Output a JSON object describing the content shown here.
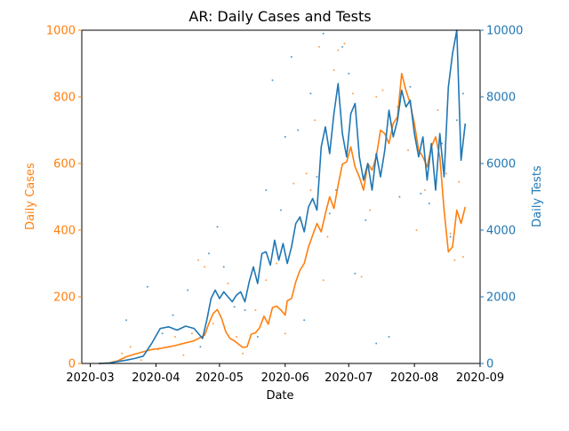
{
  "chart_data": {
    "type": "line",
    "title": "AR: Daily Cases and Tests",
    "xlabel": "Date",
    "ylabel_left": "Daily Cases",
    "ylabel_right": "Daily Tests",
    "x_ticks": [
      "2020-03",
      "2020-04",
      "2020-05",
      "2020-06",
      "2020-07",
      "2020-08",
      "2020-09"
    ],
    "xlim": [
      "2020-02-26",
      "2020-09-01"
    ],
    "ylim_left": [
      0,
      1000
    ],
    "ylim_right": [
      0,
      10000
    ],
    "yticks_left": [
      0,
      200,
      400,
      600,
      800,
      1000
    ],
    "yticks_right": [
      0,
      2000,
      4000,
      6000,
      8000,
      10000
    ],
    "grid": false,
    "colors": {
      "cases": "#ff7f0e",
      "tests": "#1f77b4",
      "axis": "#000000"
    },
    "series": [
      {
        "axis": "left",
        "color": "#ff7f0e",
        "points": [
          [
            "2020-03-05",
            0
          ],
          [
            "2020-03-10",
            2
          ],
          [
            "2020-03-14",
            8
          ],
          [
            "2020-03-18",
            20
          ],
          [
            "2020-03-22",
            28
          ],
          [
            "2020-03-26",
            35
          ],
          [
            "2020-03-30",
            42
          ],
          [
            "2020-04-03",
            45
          ],
          [
            "2020-04-07",
            50
          ],
          [
            "2020-04-11",
            55
          ],
          [
            "2020-04-15",
            62
          ],
          [
            "2020-04-19",
            68
          ],
          [
            "2020-04-22",
            78
          ],
          [
            "2020-04-24",
            85
          ],
          [
            "2020-04-26",
            120
          ],
          [
            "2020-04-28",
            150
          ],
          [
            "2020-04-30",
            162
          ],
          [
            "2020-05-02",
            135
          ],
          [
            "2020-05-04",
            95
          ],
          [
            "2020-05-06",
            75
          ],
          [
            "2020-05-08",
            68
          ],
          [
            "2020-05-10",
            58
          ],
          [
            "2020-05-12",
            48
          ],
          [
            "2020-05-14",
            50
          ],
          [
            "2020-05-16",
            88
          ],
          [
            "2020-05-18",
            92
          ],
          [
            "2020-05-20",
            108
          ],
          [
            "2020-05-22",
            142
          ],
          [
            "2020-05-24",
            118
          ],
          [
            "2020-05-26",
            168
          ],
          [
            "2020-05-28",
            172
          ],
          [
            "2020-05-30",
            160
          ],
          [
            "2020-06-01",
            145
          ],
          [
            "2020-06-02",
            188
          ],
          [
            "2020-06-04",
            195
          ],
          [
            "2020-06-06",
            245
          ],
          [
            "2020-06-08",
            280
          ],
          [
            "2020-06-10",
            300
          ],
          [
            "2020-06-12",
            350
          ],
          [
            "2020-06-14",
            385
          ],
          [
            "2020-06-16",
            420
          ],
          [
            "2020-06-18",
            395
          ],
          [
            "2020-06-20",
            450
          ],
          [
            "2020-06-22",
            500
          ],
          [
            "2020-06-24",
            465
          ],
          [
            "2020-06-26",
            535
          ],
          [
            "2020-06-28",
            598
          ],
          [
            "2020-06-30",
            605
          ],
          [
            "2020-07-02",
            650
          ],
          [
            "2020-07-04",
            590
          ],
          [
            "2020-07-06",
            560
          ],
          [
            "2020-07-08",
            520
          ],
          [
            "2020-07-10",
            600
          ],
          [
            "2020-07-12",
            580
          ],
          [
            "2020-07-14",
            620
          ],
          [
            "2020-07-16",
            700
          ],
          [
            "2020-07-18",
            690
          ],
          [
            "2020-07-20",
            660
          ],
          [
            "2020-07-22",
            720
          ],
          [
            "2020-07-24",
            740
          ],
          [
            "2020-07-26",
            870
          ],
          [
            "2020-07-28",
            820
          ],
          [
            "2020-07-30",
            780
          ],
          [
            "2020-08-01",
            720
          ],
          [
            "2020-08-03",
            640
          ],
          [
            "2020-08-05",
            620
          ],
          [
            "2020-08-07",
            590
          ],
          [
            "2020-08-09",
            650
          ],
          [
            "2020-08-11",
            680
          ],
          [
            "2020-08-13",
            620
          ],
          [
            "2020-08-15",
            460
          ],
          [
            "2020-08-17",
            335
          ],
          [
            "2020-08-19",
            350
          ],
          [
            "2020-08-21",
            460
          ],
          [
            "2020-08-23",
            420
          ],
          [
            "2020-08-25",
            470
          ]
        ]
      },
      {
        "axis": "right",
        "color": "#1f77b4",
        "points": [
          [
            "2020-03-05",
            0
          ],
          [
            "2020-03-10",
            10
          ],
          [
            "2020-03-14",
            60
          ],
          [
            "2020-03-18",
            100
          ],
          [
            "2020-03-22",
            150
          ],
          [
            "2020-03-26",
            220
          ],
          [
            "2020-03-30",
            600
          ],
          [
            "2020-04-03",
            1050
          ],
          [
            "2020-04-07",
            1100
          ],
          [
            "2020-04-11",
            1000
          ],
          [
            "2020-04-15",
            1120
          ],
          [
            "2020-04-19",
            1050
          ],
          [
            "2020-04-23",
            750
          ],
          [
            "2020-04-25",
            1300
          ],
          [
            "2020-04-27",
            1950
          ],
          [
            "2020-04-29",
            2200
          ],
          [
            "2020-05-01",
            1950
          ],
          [
            "2020-05-03",
            2150
          ],
          [
            "2020-05-05",
            2000
          ],
          [
            "2020-05-07",
            1850
          ],
          [
            "2020-05-09",
            2050
          ],
          [
            "2020-05-11",
            2150
          ],
          [
            "2020-05-13",
            1850
          ],
          [
            "2020-05-15",
            2450
          ],
          [
            "2020-05-17",
            2900
          ],
          [
            "2020-05-19",
            2400
          ],
          [
            "2020-05-21",
            3300
          ],
          [
            "2020-05-23",
            3350
          ],
          [
            "2020-05-25",
            2950
          ],
          [
            "2020-05-27",
            3700
          ],
          [
            "2020-05-29",
            3100
          ],
          [
            "2020-05-31",
            3600
          ],
          [
            "2020-06-02",
            3000
          ],
          [
            "2020-06-04",
            3500
          ],
          [
            "2020-06-06",
            4200
          ],
          [
            "2020-06-08",
            4400
          ],
          [
            "2020-06-10",
            3950
          ],
          [
            "2020-06-12",
            4700
          ],
          [
            "2020-06-14",
            4950
          ],
          [
            "2020-06-16",
            4600
          ],
          [
            "2020-06-18",
            6500
          ],
          [
            "2020-06-20",
            7100
          ],
          [
            "2020-06-22",
            6300
          ],
          [
            "2020-06-24",
            7500
          ],
          [
            "2020-06-26",
            8400
          ],
          [
            "2020-06-28",
            6900
          ],
          [
            "2020-06-30",
            6200
          ],
          [
            "2020-07-02",
            7500
          ],
          [
            "2020-07-04",
            7800
          ],
          [
            "2020-07-06",
            6200
          ],
          [
            "2020-07-08",
            5500
          ],
          [
            "2020-07-10",
            6000
          ],
          [
            "2020-07-12",
            5200
          ],
          [
            "2020-07-14",
            6300
          ],
          [
            "2020-07-16",
            5600
          ],
          [
            "2020-07-18",
            6400
          ],
          [
            "2020-07-20",
            7600
          ],
          [
            "2020-07-22",
            6800
          ],
          [
            "2020-07-24",
            7300
          ],
          [
            "2020-07-26",
            8200
          ],
          [
            "2020-07-28",
            7700
          ],
          [
            "2020-07-30",
            7900
          ],
          [
            "2020-08-01",
            6900
          ],
          [
            "2020-08-03",
            6200
          ],
          [
            "2020-08-05",
            6800
          ],
          [
            "2020-08-07",
            5500
          ],
          [
            "2020-08-09",
            6600
          ],
          [
            "2020-08-11",
            5200
          ],
          [
            "2020-08-13",
            6900
          ],
          [
            "2020-08-15",
            5600
          ],
          [
            "2020-08-17",
            8300
          ],
          [
            "2020-08-19",
            9300
          ],
          [
            "2020-08-21",
            10000
          ],
          [
            "2020-08-23",
            6100
          ],
          [
            "2020-08-25",
            7200
          ]
        ]
      }
    ],
    "scatter_left": [
      [
        "2020-03-16",
        30
      ],
      [
        "2020-03-20",
        50
      ],
      [
        "2020-03-25",
        10
      ],
      [
        "2020-04-02",
        42
      ],
      [
        "2020-04-10",
        80
      ],
      [
        "2020-04-14",
        25
      ],
      [
        "2020-04-18",
        90
      ],
      [
        "2020-04-21",
        310
      ],
      [
        "2020-04-24",
        290
      ],
      [
        "2020-04-28",
        120
      ],
      [
        "2020-05-05",
        240
      ],
      [
        "2020-05-09",
        80
      ],
      [
        "2020-05-12",
        30
      ],
      [
        "2020-05-18",
        160
      ],
      [
        "2020-05-23",
        250
      ],
      [
        "2020-05-28",
        300
      ],
      [
        "2020-06-01",
        90
      ],
      [
        "2020-06-05",
        540
      ],
      [
        "2020-06-08",
        430
      ],
      [
        "2020-06-11",
        570
      ],
      [
        "2020-06-13",
        520
      ],
      [
        "2020-06-15",
        730
      ],
      [
        "2020-06-17",
        950
      ],
      [
        "2020-06-19",
        250
      ],
      [
        "2020-06-21",
        380
      ],
      [
        "2020-06-24",
        880
      ],
      [
        "2020-06-26",
        940
      ],
      [
        "2020-06-29",
        960
      ],
      [
        "2020-07-03",
        810
      ],
      [
        "2020-07-07",
        260
      ],
      [
        "2020-07-11",
        460
      ],
      [
        "2020-07-14",
        800
      ],
      [
        "2020-07-17",
        820
      ],
      [
        "2020-07-21",
        720
      ],
      [
        "2020-07-24",
        770
      ],
      [
        "2020-07-29",
        640
      ],
      [
        "2020-08-02",
        400
      ],
      [
        "2020-08-06",
        520
      ],
      [
        "2020-08-12",
        760
      ],
      [
        "2020-08-16",
        570
      ],
      [
        "2020-08-18",
        390
      ],
      [
        "2020-08-20",
        310
      ],
      [
        "2020-08-22",
        545
      ],
      [
        "2020-08-24",
        320
      ]
    ],
    "scatter_right": [
      [
        "2020-03-18",
        1300
      ],
      [
        "2020-03-28",
        2300
      ],
      [
        "2020-04-04",
        900
      ],
      [
        "2020-04-09",
        1450
      ],
      [
        "2020-04-16",
        2200
      ],
      [
        "2020-04-22",
        500
      ],
      [
        "2020-04-26",
        3300
      ],
      [
        "2020-04-30",
        4100
      ],
      [
        "2020-05-03",
        2900
      ],
      [
        "2020-05-08",
        1700
      ],
      [
        "2020-05-13",
        1600
      ],
      [
        "2020-05-19",
        800
      ],
      [
        "2020-05-23",
        5200
      ],
      [
        "2020-05-26",
        8500
      ],
      [
        "2020-05-30",
        4600
      ],
      [
        "2020-06-01",
        6800
      ],
      [
        "2020-06-04",
        9200
      ],
      [
        "2020-06-07",
        7000
      ],
      [
        "2020-06-10",
        1300
      ],
      [
        "2020-06-13",
        8100
      ],
      [
        "2020-06-16",
        5600
      ],
      [
        "2020-06-19",
        9900
      ],
      [
        "2020-06-22",
        4500
      ],
      [
        "2020-06-25",
        5200
      ],
      [
        "2020-06-28",
        9500
      ],
      [
        "2020-07-01",
        8700
      ],
      [
        "2020-07-04",
        2700
      ],
      [
        "2020-07-09",
        4300
      ],
      [
        "2020-07-14",
        600
      ],
      [
        "2020-07-20",
        800
      ],
      [
        "2020-07-25",
        5000
      ],
      [
        "2020-07-30",
        8300
      ],
      [
        "2020-08-04",
        5100
      ],
      [
        "2020-08-08",
        4800
      ],
      [
        "2020-08-14",
        6600
      ],
      [
        "2020-08-18",
        3800
      ],
      [
        "2020-08-21",
        7300
      ],
      [
        "2020-08-24",
        8100
      ]
    ]
  }
}
